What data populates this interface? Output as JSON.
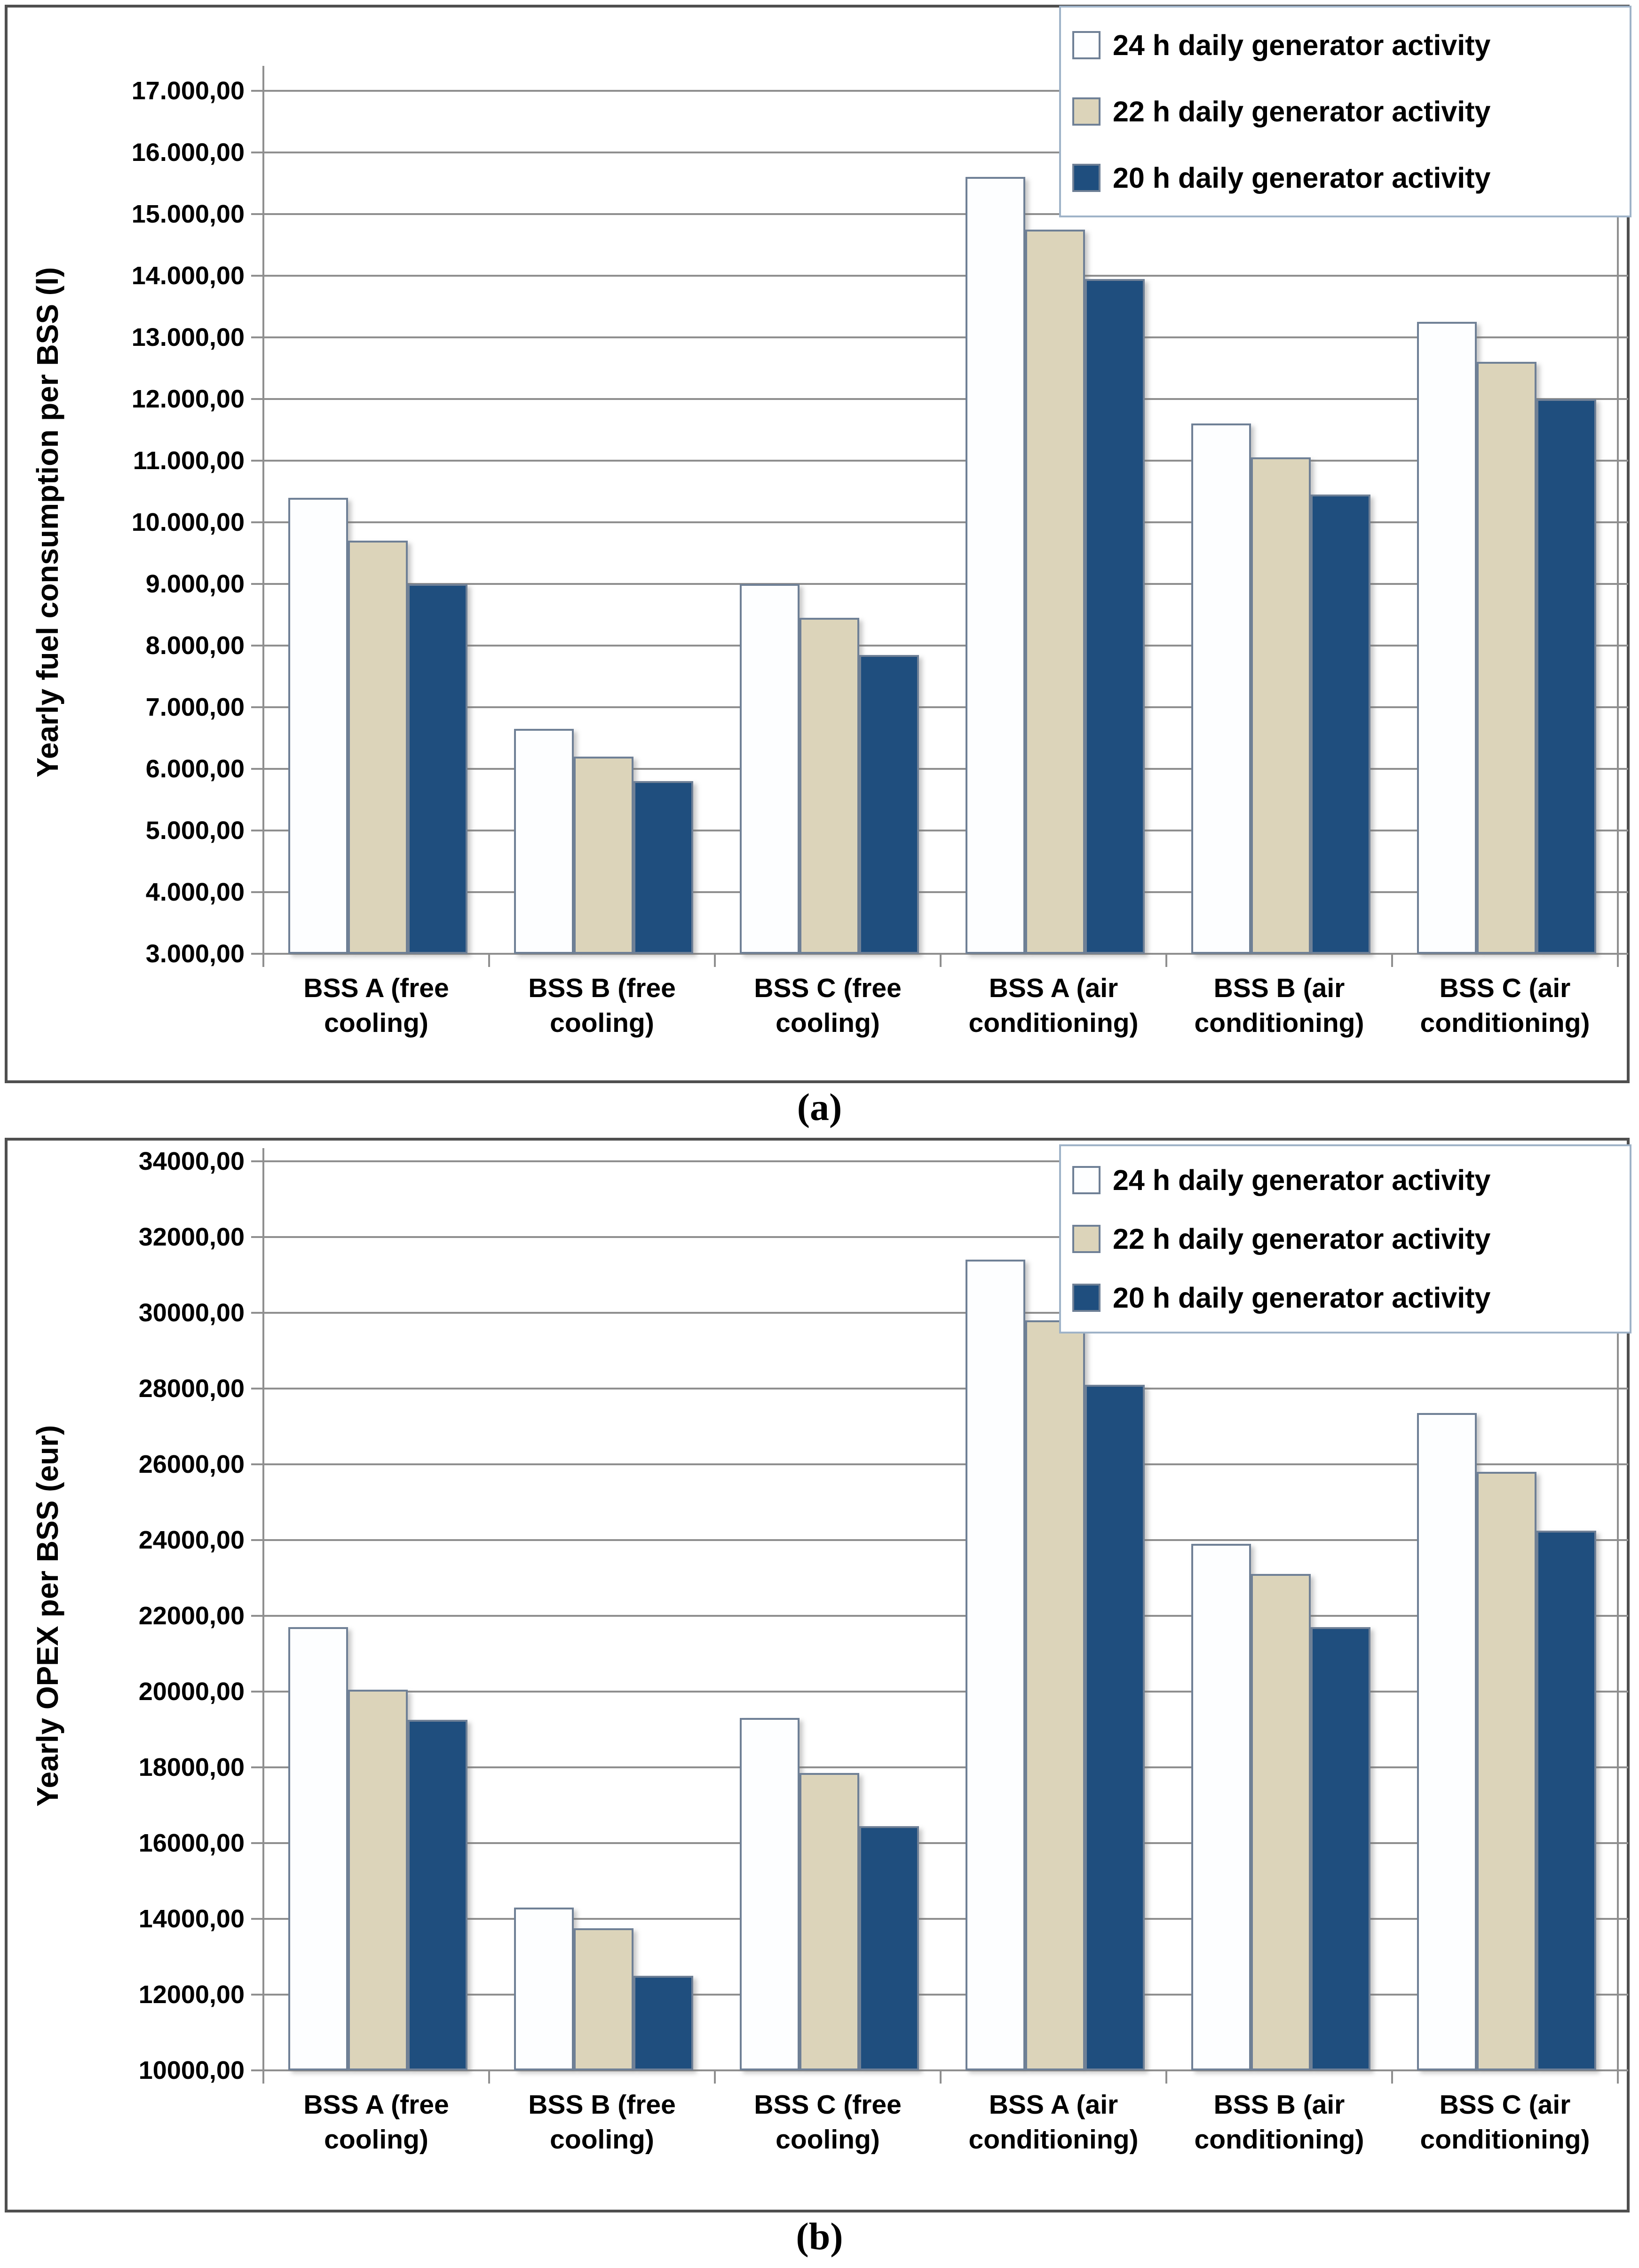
{
  "figure": {
    "captions": [
      "(a)",
      "(b)"
    ]
  },
  "colors": {
    "series_24h": "#FDFEFF",
    "series_22h": "#DCD4BA",
    "series_20h": "#1F4E7E",
    "bar_border": "#6F8096",
    "gridline": "#8F8F8F",
    "figure_border": "#4F4F4F",
    "legend_border": "#9FB3C8",
    "text": "#000000"
  },
  "legend": {
    "position": "top-right",
    "items": [
      "24 h daily generator activity",
      "22 h daily generator activity",
      "20 h daily generator activity"
    ]
  },
  "chart_data": [
    {
      "type": "bar",
      "caption": "(a)",
      "ylabel": "Yearly fuel consumption per BSS (l)",
      "xlabel": "",
      "ylim": [
        3000,
        17000
      ],
      "ytick_step": 1000,
      "grid": true,
      "legend_position": "top-right",
      "yticks": [
        {
          "value": 17000,
          "label": "17.000,00"
        },
        {
          "value": 16000,
          "label": "16.000,00"
        },
        {
          "value": 15000,
          "label": "15.000,00"
        },
        {
          "value": 14000,
          "label": "14.000,00"
        },
        {
          "value": 13000,
          "label": "13.000,00"
        },
        {
          "value": 12000,
          "label": "12.000,00"
        },
        {
          "value": 11000,
          "label": "11.000,00"
        },
        {
          "value": 10000,
          "label": "10.000,00"
        },
        {
          "value": 9000,
          "label": "9.000,00"
        },
        {
          "value": 8000,
          "label": "8.000,00"
        },
        {
          "value": 7000,
          "label": "7.000,00"
        },
        {
          "value": 6000,
          "label": "6.000,00"
        },
        {
          "value": 5000,
          "label": "5.000,00"
        },
        {
          "value": 4000,
          "label": "4.000,00"
        },
        {
          "value": 3000,
          "label": "3.000,00"
        }
      ],
      "categories": [
        "BSS A (free cooling)",
        "BSS B (free cooling)",
        "BSS C (free cooling)",
        "BSS A (air conditioning)",
        "BSS B (air conditioning)",
        "BSS C (air conditioning)"
      ],
      "category_lines": [
        [
          "BSS A (free",
          "cooling)"
        ],
        [
          "BSS B  (free",
          "cooling)"
        ],
        [
          "BSS C  (free",
          "cooling)"
        ],
        [
          "BSS A (air",
          "conditioning)"
        ],
        [
          "BSS B (air",
          "conditioning)"
        ],
        [
          "BSS C (air",
          "conditioning)"
        ]
      ],
      "series": [
        {
          "name": "24 h daily generator activity",
          "color": "#FDFEFF",
          "values": [
            10400,
            6650,
            9000,
            15600,
            11600,
            13250
          ]
        },
        {
          "name": "22 h daily generator activity",
          "color": "#DCD4BA",
          "values": [
            9700,
            6200,
            8450,
            14750,
            11050,
            12600
          ]
        },
        {
          "name": "20 h daily generator activity",
          "color": "#1F4E7E",
          "values": [
            9000,
            5800,
            7850,
            13950,
            10450,
            12000
          ]
        }
      ]
    },
    {
      "type": "bar",
      "caption": "(b)",
      "ylabel": "Yearly OPEX per BSS (eur)",
      "xlabel": "",
      "ylim": [
        10000,
        34000
      ],
      "ytick_step": 2000,
      "grid": true,
      "legend_position": "top-right",
      "yticks": [
        {
          "value": 34000,
          "label": "34000,00"
        },
        {
          "value": 32000,
          "label": "32000,00"
        },
        {
          "value": 30000,
          "label": "30000,00"
        },
        {
          "value": 28000,
          "label": "28000,00"
        },
        {
          "value": 26000,
          "label": "26000,00"
        },
        {
          "value": 24000,
          "label": "24000,00"
        },
        {
          "value": 22000,
          "label": "22000,00"
        },
        {
          "value": 20000,
          "label": "20000,00"
        },
        {
          "value": 18000,
          "label": "18000,00"
        },
        {
          "value": 16000,
          "label": "16000,00"
        },
        {
          "value": 14000,
          "label": "14000,00"
        },
        {
          "value": 12000,
          "label": "12000,00"
        },
        {
          "value": 10000,
          "label": "10000,00"
        }
      ],
      "categories": [
        "BSS A (free cooling)",
        "BSS B (free cooling)",
        "BSS C (free cooling)",
        "BSS A (air conditioning)",
        "BSS B (air conditioning)",
        "BSS C (air conditioning)"
      ],
      "category_lines": [
        [
          "BSS A (free",
          "cooling)"
        ],
        [
          "BSS B  (free",
          "cooling)"
        ],
        [
          "BSS C  (free",
          "cooling)"
        ],
        [
          "BSS A (air",
          "conditioning)"
        ],
        [
          "BSS B (air",
          "conditioning)"
        ],
        [
          "BSS C (air",
          "conditioning)"
        ]
      ],
      "series": [
        {
          "name": "24 h daily generator activity",
          "color": "#FDFEFF",
          "values": [
            21700,
            14300,
            19300,
            31400,
            23900,
            27350
          ]
        },
        {
          "name": "22 h daily generator activity",
          "color": "#DCD4BA",
          "values": [
            20050,
            13750,
            17850,
            29800,
            23100,
            25800
          ]
        },
        {
          "name": "20 h daily generator activity",
          "color": "#1F4E7E",
          "values": [
            19250,
            12500,
            16450,
            28100,
            21700,
            24250
          ]
        }
      ]
    }
  ]
}
